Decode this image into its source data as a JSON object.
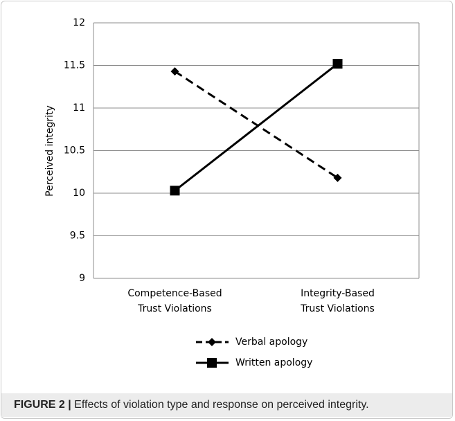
{
  "chart_data": {
    "type": "line",
    "y_label": "Perceived integrity",
    "categories": [
      "Competence-Based Trust Violations",
      "Integrity-Based Trust Violations"
    ],
    "series": [
      {
        "name": "Verbal apology",
        "color": "#000000",
        "line_style": "dashed",
        "marker": "diamond",
        "values": [
          11.43,
          10.18
        ]
      },
      {
        "name": "Written apology",
        "color": "#000000",
        "line_style": "solid",
        "marker": "square",
        "values": [
          10.03,
          11.52
        ]
      }
    ],
    "ylim": [
      9,
      12
    ],
    "yticks": [
      9,
      9.5,
      10,
      10.5,
      11,
      11.5,
      12
    ],
    "grid": true,
    "legend": "bottom"
  },
  "caption": {
    "label": "FIGURE 2 |",
    "text": "Effects of violation type and response on perceived integrity."
  }
}
